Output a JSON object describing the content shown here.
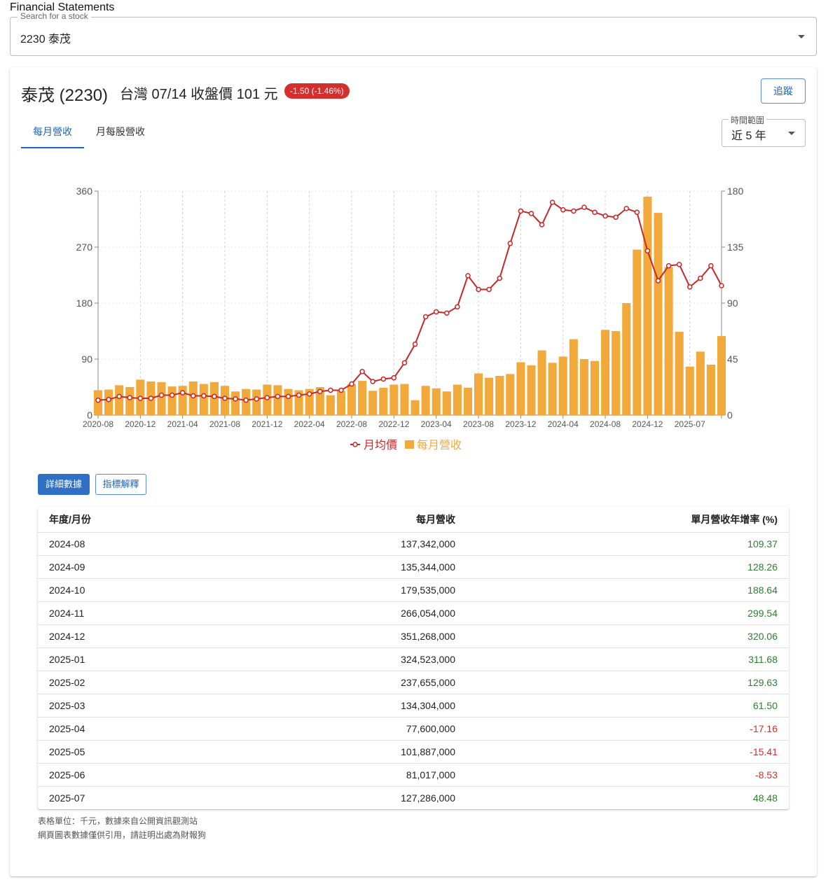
{
  "app": {
    "title": "Financial Statements"
  },
  "search": {
    "label": "Search for a stock",
    "value": "2230 泰茂"
  },
  "stock": {
    "name": "泰茂 (2230)",
    "market_line": "台灣 07/14 收盤價 101 元",
    "change": "-1.50 (-1.46%)",
    "follow_label": "追蹤"
  },
  "tabs": [
    {
      "label": "每月營收",
      "active": true
    },
    {
      "label": "月每股營收",
      "active": false
    }
  ],
  "range": {
    "label": "時間範圍",
    "value": "近 5 年"
  },
  "colors": {
    "bar": "#f2a93b",
    "line": "#c62828",
    "accent": "#1e63c4"
  },
  "chart_data": {
    "type": "bar",
    "x_tick_labels": [
      "2020-08",
      "2020-12",
      "2021-04",
      "2021-08",
      "2021-12",
      "2022-04",
      "2022-08",
      "2022-12",
      "2023-04",
      "2023-08",
      "2023-12",
      "2024-04",
      "2024-08",
      "2024-12",
      "2025-07"
    ],
    "y_left_ticks": [
      "0",
      "90",
      "180",
      "270",
      "360"
    ],
    "y_right_ticks": [
      "0",
      "45",
      "90",
      "135",
      "180"
    ],
    "y_left_lim": [
      0,
      360
    ],
    "y_right_lim": [
      0,
      180
    ],
    "grid": "vertical dashed at x ticks, horizontal dotted",
    "legend_position": "bottom-center",
    "series": [
      {
        "name": "每月營收",
        "type": "bar",
        "axis": "left",
        "values": [
          40,
          41,
          48,
          45,
          57,
          54,
          53,
          46,
          47,
          54,
          50,
          53,
          47,
          38,
          42,
          41,
          49,
          48,
          42,
          40,
          42,
          45,
          32,
          39,
          50,
          55,
          39,
          44,
          49,
          50,
          24,
          47,
          43,
          38,
          49,
          44,
          67,
          60,
          63,
          66,
          85,
          80,
          104,
          84,
          94,
          122,
          90,
          87,
          137,
          135,
          180,
          266,
          351,
          325,
          238,
          134,
          78,
          102,
          81,
          127
        ],
        "unit": "百萬元 (approx, read from axis)"
      },
      {
        "name": "月均價",
        "type": "line",
        "axis": "right",
        "values": [
          12,
          12.5,
          15,
          14,
          13.5,
          13.5,
          16,
          16,
          18,
          15.5,
          15.5,
          15,
          13.5,
          13,
          12,
          13,
          14,
          15,
          15,
          16,
          17,
          19,
          20,
          20,
          25,
          35,
          27,
          29,
          30,
          42,
          57,
          79,
          83,
          82,
          87,
          112,
          101,
          101,
          110,
          138,
          164,
          162,
          153,
          171,
          165,
          164,
          167,
          163,
          160,
          159,
          166,
          163,
          132,
          108,
          120,
          121,
          103,
          110,
          120,
          104
        ],
        "unit": "元"
      }
    ]
  },
  "buttons": {
    "detail": "詳細數據",
    "explain": "指標解釋"
  },
  "table": {
    "headers": [
      "年度/月份",
      "每月營收",
      "單月營收年增率 (%)"
    ],
    "rows": [
      {
        "month": "2024-08",
        "revenue": "137,342,000",
        "yoy": "109.37",
        "trend": "pos"
      },
      {
        "month": "2024-09",
        "revenue": "135,344,000",
        "yoy": "128.26",
        "trend": "pos"
      },
      {
        "month": "2024-10",
        "revenue": "179,535,000",
        "yoy": "188.64",
        "trend": "pos"
      },
      {
        "month": "2024-11",
        "revenue": "266,054,000",
        "yoy": "299.54",
        "trend": "pos"
      },
      {
        "month": "2024-12",
        "revenue": "351,268,000",
        "yoy": "320.06",
        "trend": "pos"
      },
      {
        "month": "2025-01",
        "revenue": "324,523,000",
        "yoy": "311.68",
        "trend": "pos"
      },
      {
        "month": "2025-02",
        "revenue": "237,655,000",
        "yoy": "129.63",
        "trend": "pos"
      },
      {
        "month": "2025-03",
        "revenue": "134,304,000",
        "yoy": "61.50",
        "trend": "pos"
      },
      {
        "month": "2025-04",
        "revenue": "77,600,000",
        "yoy": "-17.16",
        "trend": "neg"
      },
      {
        "month": "2025-05",
        "revenue": "101,887,000",
        "yoy": "-15.41",
        "trend": "neg"
      },
      {
        "month": "2025-06",
        "revenue": "81,017,000",
        "yoy": "-8.53",
        "trend": "neg"
      },
      {
        "month": "2025-07",
        "revenue": "127,286,000",
        "yoy": "48.48",
        "trend": "pos"
      }
    ]
  },
  "notes": {
    "unit": "表格單位：千元，數據來自公開資訊觀測站",
    "citation": "網頁圖表數據僅供引用，請註明出處為財報狗"
  }
}
